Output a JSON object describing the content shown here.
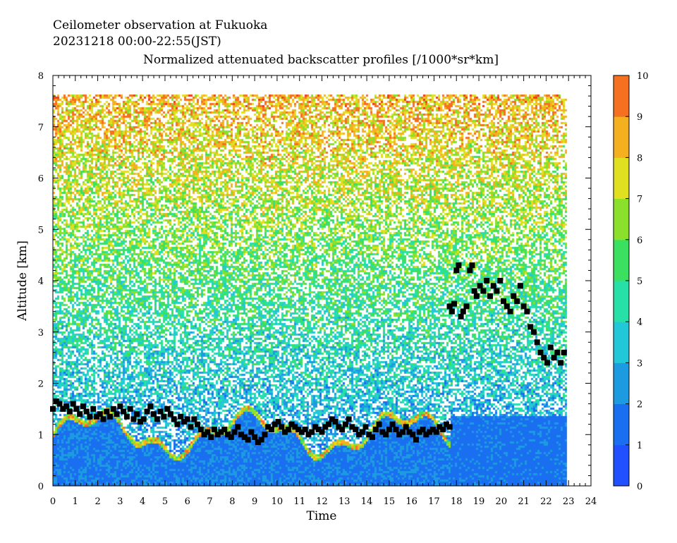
{
  "header": {
    "line1": "Ceilometer observation at Fukuoka",
    "line2": "20231218  00:00-22:55(JST)"
  },
  "chart_data": {
    "type": "heatmap",
    "title": "Normalized attenuated backscatter profiles [/1000*sr*km]",
    "xlabel": "Time",
    "ylabel": "Altitude [km]",
    "xlim": [
      0,
      24
    ],
    "ylim": [
      0,
      8
    ],
    "x_ticks": [
      "0",
      "1",
      "2",
      "3",
      "4",
      "5",
      "6",
      "7",
      "8",
      "9",
      "10",
      "11",
      "12",
      "13",
      "14",
      "15",
      "16",
      "17",
      "18",
      "19",
      "20",
      "21",
      "22",
      "23",
      "24"
    ],
    "y_ticks": [
      "0",
      "1",
      "2",
      "3",
      "4",
      "5",
      "6",
      "7",
      "8"
    ],
    "colorbar": {
      "min": 0,
      "max": 10,
      "ticks": [
        "0",
        "1",
        "2",
        "3",
        "4",
        "5",
        "6",
        "7",
        "8",
        "9",
        "10"
      ],
      "colors": [
        "#2050ff",
        "#1a6ff0",
        "#1d9be0",
        "#22c8d8",
        "#26e0a8",
        "#3ce060",
        "#8ae02a",
        "#e0e020",
        "#f5b020",
        "#f57020",
        "#f03a18"
      ]
    },
    "data_end_time": 22.92,
    "data_top_altitude": 7.65,
    "cloud_base_points": [
      [
        0.0,
        1.5
      ],
      [
        0.15,
        1.65
      ],
      [
        0.3,
        1.6
      ],
      [
        0.45,
        1.5
      ],
      [
        0.6,
        1.55
      ],
      [
        0.75,
        1.45
      ],
      [
        0.9,
        1.6
      ],
      [
        1.05,
        1.5
      ],
      [
        1.2,
        1.4
      ],
      [
        1.35,
        1.55
      ],
      [
        1.5,
        1.45
      ],
      [
        1.65,
        1.35
      ],
      [
        1.8,
        1.5
      ],
      [
        1.95,
        1.35
      ],
      [
        2.1,
        1.4
      ],
      [
        2.25,
        1.3
      ],
      [
        2.4,
        1.45
      ],
      [
        2.55,
        1.35
      ],
      [
        2.7,
        1.5
      ],
      [
        2.85,
        1.4
      ],
      [
        3.0,
        1.55
      ],
      [
        3.15,
        1.45
      ],
      [
        3.3,
        1.35
      ],
      [
        3.45,
        1.5
      ],
      [
        3.6,
        1.3
      ],
      [
        3.75,
        1.4
      ],
      [
        3.9,
        1.25
      ],
      [
        4.05,
        1.3
      ],
      [
        4.2,
        1.45
      ],
      [
        4.35,
        1.55
      ],
      [
        4.5,
        1.4
      ],
      [
        4.65,
        1.3
      ],
      [
        4.8,
        1.45
      ],
      [
        4.95,
        1.35
      ],
      [
        5.1,
        1.5
      ],
      [
        5.25,
        1.4
      ],
      [
        5.4,
        1.3
      ],
      [
        5.55,
        1.2
      ],
      [
        5.7,
        1.35
      ],
      [
        5.85,
        1.25
      ],
      [
        6.0,
        1.3
      ],
      [
        6.15,
        1.15
      ],
      [
        6.3,
        1.3
      ],
      [
        6.45,
        1.2
      ],
      [
        6.6,
        1.1
      ],
      [
        6.75,
        1.0
      ],
      [
        6.9,
        1.05
      ],
      [
        7.05,
        0.95
      ],
      [
        7.2,
        1.1
      ],
      [
        7.35,
        1.0
      ],
      [
        7.5,
        1.05
      ],
      [
        7.65,
        1.1
      ],
      [
        7.8,
        1.0
      ],
      [
        7.95,
        0.95
      ],
      [
        8.1,
        1.05
      ],
      [
        8.25,
        1.15
      ],
      [
        8.4,
        1.0
      ],
      [
        8.55,
        0.95
      ],
      [
        8.7,
        0.9
      ],
      [
        8.85,
        1.05
      ],
      [
        9.0,
        0.95
      ],
      [
        9.15,
        0.85
      ],
      [
        9.3,
        0.9
      ],
      [
        9.45,
        1.0
      ],
      [
        9.6,
        1.15
      ],
      [
        9.75,
        1.1
      ],
      [
        9.9,
        1.2
      ],
      [
        10.05,
        1.25
      ],
      [
        10.2,
        1.15
      ],
      [
        10.35,
        1.05
      ],
      [
        10.5,
        1.1
      ],
      [
        10.65,
        1.2
      ],
      [
        10.8,
        1.15
      ],
      [
        10.95,
        1.1
      ],
      [
        11.1,
        1.05
      ],
      [
        11.25,
        1.1
      ],
      [
        11.4,
        1.0
      ],
      [
        11.55,
        1.05
      ],
      [
        11.7,
        1.15
      ],
      [
        11.85,
        1.1
      ],
      [
        12.0,
        1.05
      ],
      [
        12.15,
        1.15
      ],
      [
        12.3,
        1.2
      ],
      [
        12.45,
        1.3
      ],
      [
        12.6,
        1.25
      ],
      [
        12.75,
        1.15
      ],
      [
        12.9,
        1.1
      ],
      [
        13.05,
        1.2
      ],
      [
        13.2,
        1.3
      ],
      [
        13.35,
        1.15
      ],
      [
        13.5,
        1.1
      ],
      [
        13.65,
        1.0
      ],
      [
        13.8,
        1.05
      ],
      [
        13.95,
        1.15
      ],
      [
        14.1,
        1.0
      ],
      [
        14.25,
        0.95
      ],
      [
        14.4,
        1.1
      ],
      [
        14.55,
        1.2
      ],
      [
        14.7,
        1.05
      ],
      [
        14.85,
        1.0
      ],
      [
        15.0,
        1.1
      ],
      [
        15.15,
        1.2
      ],
      [
        15.3,
        1.1
      ],
      [
        15.45,
        1.0
      ],
      [
        15.6,
        1.05
      ],
      [
        15.75,
        1.15
      ],
      [
        15.9,
        1.05
      ],
      [
        16.05,
        1.0
      ],
      [
        16.2,
        0.9
      ],
      [
        16.35,
        1.05
      ],
      [
        16.5,
        1.1
      ],
      [
        16.65,
        1.0
      ],
      [
        16.8,
        1.05
      ],
      [
        16.95,
        1.1
      ],
      [
        17.1,
        1.05
      ],
      [
        17.25,
        1.15
      ],
      [
        17.4,
        1.1
      ],
      [
        17.55,
        1.2
      ],
      [
        17.7,
        1.15
      ],
      [
        17.7,
        3.5
      ],
      [
        17.8,
        3.4
      ],
      [
        17.9,
        3.55
      ],
      [
        18.0,
        4.2
      ],
      [
        18.1,
        4.3
      ],
      [
        18.2,
        3.3
      ],
      [
        18.3,
        3.4
      ],
      [
        18.45,
        3.5
      ],
      [
        18.6,
        4.2
      ],
      [
        18.7,
        4.3
      ],
      [
        18.8,
        3.8
      ],
      [
        18.9,
        3.7
      ],
      [
        19.05,
        3.9
      ],
      [
        19.2,
        3.8
      ],
      [
        19.35,
        4.0
      ],
      [
        19.5,
        3.7
      ],
      [
        19.65,
        3.9
      ],
      [
        19.8,
        3.8
      ],
      [
        19.95,
        4.0
      ],
      [
        20.1,
        3.6
      ],
      [
        20.25,
        3.5
      ],
      [
        20.4,
        3.4
      ],
      [
        20.55,
        3.7
      ],
      [
        20.7,
        3.6
      ],
      [
        20.85,
        3.9
      ],
      [
        21.0,
        3.5
      ],
      [
        21.15,
        3.4
      ],
      [
        21.3,
        3.1
      ],
      [
        21.45,
        3.0
      ],
      [
        21.6,
        2.8
      ],
      [
        21.75,
        2.6
      ],
      [
        21.9,
        2.5
      ],
      [
        22.05,
        2.4
      ],
      [
        22.2,
        2.7
      ],
      [
        22.35,
        2.5
      ],
      [
        22.5,
        2.6
      ],
      [
        22.65,
        2.4
      ],
      [
        22.8,
        2.6
      ]
    ],
    "grid": false,
    "legend": "colorbar-right"
  }
}
